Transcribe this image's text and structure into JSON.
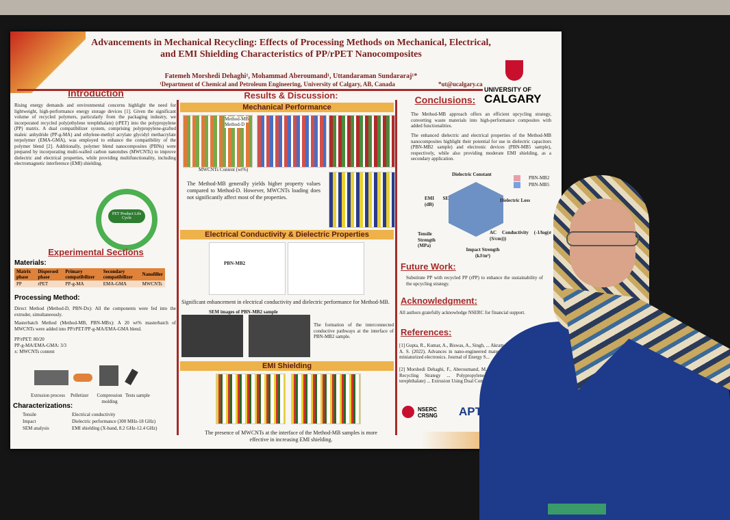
{
  "poster": {
    "title": "Advancements in Mechanical Recycling: Effects of Processing Methods on Mechanical, Electrical, and EMI Shielding Characteristics of PP/rPET Nanocomposites",
    "authors": "Fatemeh Morshedi Dehaghi¹, Mohammad Aberoumand¹, Uttandaraman Sundararaj¹*",
    "affiliation": "¹Department of Chemical and Petroleum Engineering, University of Calgary, AB, Canada",
    "email": "*ut@ucalgary.ca",
    "university": [
      "UNIVERSITY OF",
      "CALGARY"
    ],
    "introduction": {
      "heading": "Introduction",
      "text": "Rising energy demands and environmental concerns highlight the need for lightweight, high-performance energy storage devices [1]. Given the significant volume of recycled polymers, particularly from the packaging industry, we incorporated recycled poly(ethylene terephthalate) (rPET) into the polypropylene (PP) matrix. A dual compatibilizer system, comprising polypropylene-grafted maleic anhydride (PP-g-MA) and ethylene-methyl acrylate glycidyl methacrylate terpolymer (EMA-GMA), was employed to enhance the compatibility of the polymer blend [2]. Additionally, polymer blend nanocomposites (PBNs) were prepared by incorporating multi-walled carbon nanotubes (MWCNTs) to improve dielectric and electrical properties, while providing multifunctionality, including electromagnetic interference (EMI) shielding.",
      "cycle": "PET Product Life Cycle"
    },
    "experimental": {
      "heading": "Experimental Sections",
      "materials": "Materials:",
      "table": {
        "header": [
          "Matrix phase",
          "Dispersed phase",
          "Primary compatibilizer",
          "Secondary compatibilizer",
          "Nanofiller"
        ],
        "row": [
          "PP",
          "rPET",
          "PP-g-MA",
          "EMA-GMA",
          "MWCNTs"
        ]
      },
      "processing": "Processing Method:",
      "direct": "Direct Method (Method-D, PBN-Dx): All the components were fed into the extruder, simultaneously.",
      "masterbatch": "Masterbatch Method (Method-MB, PBN-MBx): A 20 wt% masterbatch of MWCNTs were added into PP/rPET/PP-g-MA/EMA-GMA blend.",
      "recipe": [
        "PP/rPET: 80/20",
        "PP-g-MA/EMA-GMA: 3/3",
        "x: MWCNTs content"
      ],
      "steps": [
        "Extrusion process",
        "Pelletizer",
        "Compression molding",
        "Tests sample"
      ],
      "characterizations": "Characterizations:",
      "char_left": [
        "Tensile",
        "Impact",
        "SEM analysis"
      ],
      "char_right": [
        "Electrical conductivity",
        "Dielectric performance (300 MHz-18 GHz)",
        "EMI shielding (X-band, 8.2 GHz-12.4 GHz)"
      ]
    },
    "results": {
      "heading": "Results & Discussion:",
      "mechanical": "Mechanical Performance",
      "legend": [
        "Method-MB",
        "Method-D"
      ],
      "xlabel": "MWCNTs Content (wt%)",
      "mech_text": "The Method-MB generally yields higher property values compared to Method-D. However, MWCNTs loading does not significantly affect most of the properties.",
      "electrical": "Electrical Conductivity & Dielectric Properties",
      "sample": "PBN-MB2",
      "elec_text": "Significant enhancement in electrical conductivity and dielectric performance for Method-MB.",
      "sem": "SEM images of PBN-MB2 sample",
      "sem_text": "The formation of the interconnected conductive pathways at the interface of PBN-MB2 sample.",
      "emi": "EMI Shielding",
      "emi_text": "The presence of MWCNTs at the interface of the Method-MB samples is more effective in increasing EMI shielding."
    },
    "conclusions": {
      "heading": "Conclusions:",
      "items": [
        "The Method-MB approach offers an efficient upcycling strategy, converting waste materials into high-performance composites with added functionalities.",
        "The enhanced dielectric and electrical properties of the Method-MB nanocomposites highlight their potential for use in dielectric capacitors (PBN-MB2 sample) and electronic devices (PBN-MB5 sample), respectively, while also providing moderate EMI shielding, as a secondary application."
      ],
      "radar": [
        "Dielectric Constant",
        "Dielectric Loss",
        "AC Conductivity (-1/log(σ (S/cm)))",
        "Impact Strength (kJ/m²)",
        "Tensile Strength (MPa)",
        "EMI SE (dB)"
      ],
      "radar_legend": [
        "PBN-MB2",
        "PBN-MB5"
      ]
    },
    "future": {
      "heading": "Future Work:",
      "text": "Substitute PP with recycled PP (rPP) to enhance the sustainability of the upcycling strategy."
    },
    "acknowledgment": {
      "heading": "Acknowledgment:",
      "text": "All authors gratefully acknowledge NSERC for financial support."
    },
    "references": {
      "heading": "References:",
      "items": [
        "[1] Gupta, R., Kumar, A., Biswas, A., Singh, ... Akram, S. V., & Verma, A. S. (2022). Advances in nano-engineered materials for high-value miniaturized electronics. Journal of Energy S...",
        "[2] Morshedi Dehaghi, F., Aberoumand, M., ... (2024). A Promising Recycling Strategy ... Polypropylene/Recycled Poly(ethylene terephthalate) ... Extrusion Using Dual Compatibilizers, Po..."
      ]
    },
    "logos": [
      "NSERC CRSNG",
      "APT"
    ]
  }
}
